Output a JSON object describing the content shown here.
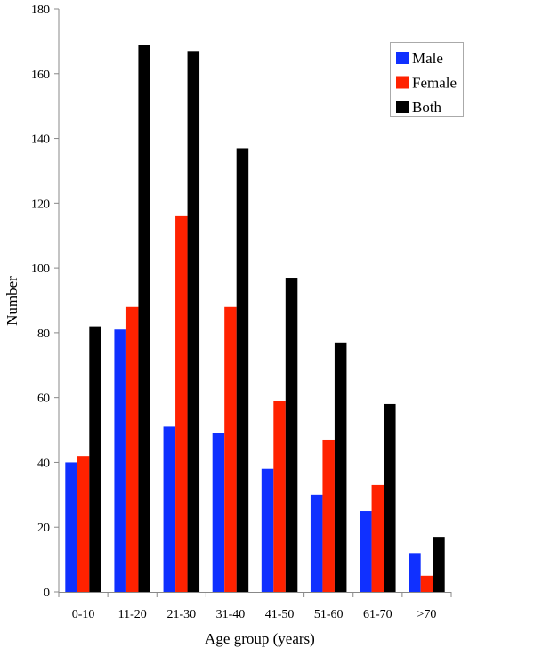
{
  "chart_data": {
    "type": "bar",
    "title": "",
    "xlabel": "Age group (years)",
    "ylabel": "Number",
    "ylim": [
      0,
      180
    ],
    "yticks": [
      0,
      20,
      40,
      60,
      80,
      100,
      120,
      140,
      160,
      180
    ],
    "grid": false,
    "legend_position": "top-right",
    "categories": [
      "0-10",
      "11-20",
      "21-30",
      "31-40",
      "41-50",
      "51-60",
      "61-70",
      ">70"
    ],
    "series": [
      {
        "name": "Male",
        "color": "#1030ff",
        "values": [
          40,
          81,
          51,
          49,
          38,
          30,
          25,
          12
        ]
      },
      {
        "name": "Female",
        "color": "#ff2200",
        "values": [
          42,
          88,
          116,
          88,
          59,
          47,
          33,
          5
        ]
      },
      {
        "name": "Both",
        "color": "#000000",
        "values": [
          82,
          169,
          167,
          137,
          97,
          77,
          58,
          17
        ]
      }
    ]
  }
}
